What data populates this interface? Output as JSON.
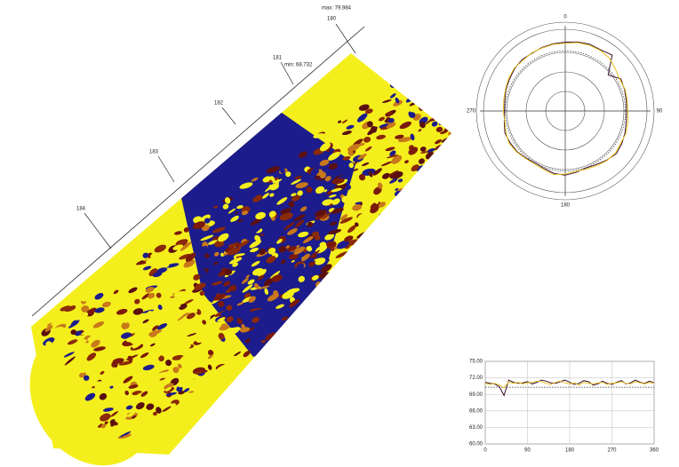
{
  "surface_view": {
    "max_label": "max: 79.984",
    "min_label": "min: 68.732",
    "sections": [
      "180",
      "181",
      "182",
      "183",
      "184"
    ]
  },
  "chart_data": [
    {
      "type": "polar",
      "theta": [
        0,
        10,
        20,
        30,
        40,
        50,
        60,
        70,
        80,
        90,
        100,
        110,
        120,
        130,
        140,
        150,
        160,
        170,
        180,
        190,
        200,
        210,
        220,
        230,
        240,
        250,
        260,
        270,
        280,
        290,
        300,
        310,
        320,
        330,
        340,
        350
      ],
      "thetaticks": [
        0,
        90,
        180,
        270
      ],
      "rlim": [
        60,
        74
      ],
      "reference_value": 70.3,
      "series": [
        {
          "color": "#3a1030",
          "values": [
            71.8,
            72.0,
            72.2,
            72.1,
            72.5,
            69.6,
            71.0,
            70.8,
            70.6,
            70.5,
            70.6,
            70.9,
            71.2,
            71.4,
            71.0,
            70.6,
            70.4,
            70.7,
            71.0,
            70.9,
            70.5,
            70.3,
            70.5,
            70.8,
            70.9,
            71.0,
            70.6,
            70.4,
            70.5,
            70.8,
            71.0,
            71.3,
            71.5,
            71.4,
            71.6,
            71.7
          ]
        },
        {
          "color": "#e8c020",
          "values": [
            71.6,
            71.9,
            72.0,
            72.0,
            71.8,
            71.2,
            70.8,
            70.9,
            70.8,
            70.7,
            70.9,
            71.1,
            71.0,
            71.2,
            71.1,
            70.8,
            70.6,
            70.5,
            70.8,
            71.1,
            70.7,
            70.5,
            70.6,
            70.9,
            71.1,
            70.8,
            70.5,
            70.6,
            70.7,
            70.9,
            71.2,
            71.4,
            71.3,
            71.5,
            71.5,
            71.6
          ]
        }
      ]
    },
    {
      "type": "line",
      "x": [
        0,
        10,
        20,
        30,
        40,
        50,
        60,
        70,
        80,
        90,
        100,
        110,
        120,
        130,
        140,
        150,
        160,
        170,
        180,
        190,
        200,
        210,
        220,
        230,
        240,
        250,
        260,
        270,
        280,
        290,
        300,
        310,
        320,
        330,
        340,
        350,
        360
      ],
      "xlim": [
        0,
        360
      ],
      "xticks": [
        0,
        90,
        180,
        270,
        360
      ],
      "ylim": [
        60,
        75
      ],
      "yticks": [
        {
          "value": 60,
          "label": "60.00"
        },
        {
          "value": 63,
          "label": "63.00"
        },
        {
          "value": 66,
          "label": "66.00"
        },
        {
          "value": 69,
          "label": "69.00"
        },
        {
          "value": 72,
          "label": "72.00"
        },
        {
          "value": 75,
          "label": "75.00"
        }
      ],
      "grid": true,
      "reference_value": 70.3,
      "series": [
        {
          "color": "#3a1030",
          "values": [
            71.2,
            71.0,
            70.9,
            70.4,
            68.8,
            71.6,
            71.2,
            71.0,
            71.1,
            71.3,
            70.9,
            71.2,
            71.6,
            71.4,
            71.1,
            71.0,
            71.3,
            71.6,
            71.2,
            70.8,
            71.0,
            71.5,
            71.3,
            70.7,
            70.9,
            71.4,
            71.0,
            70.8,
            71.2,
            71.5,
            70.9,
            71.1,
            71.6,
            71.2,
            71.0,
            71.4,
            71.1
          ]
        },
        {
          "color": "#e8c020",
          "values": [
            71.0,
            70.8,
            71.0,
            70.7,
            70.2,
            71.3,
            71.0,
            71.2,
            70.9,
            71.1,
            71.2,
            71.4,
            71.3,
            71.0,
            70.8,
            71.2,
            71.4,
            71.1,
            70.9,
            71.1,
            70.7,
            71.2,
            71.0,
            70.9,
            71.1,
            71.2,
            70.8,
            71.0,
            71.1,
            71.3,
            71.0,
            70.9,
            71.3,
            71.1,
            70.9,
            71.2,
            71.0
          ]
        }
      ]
    }
  ]
}
